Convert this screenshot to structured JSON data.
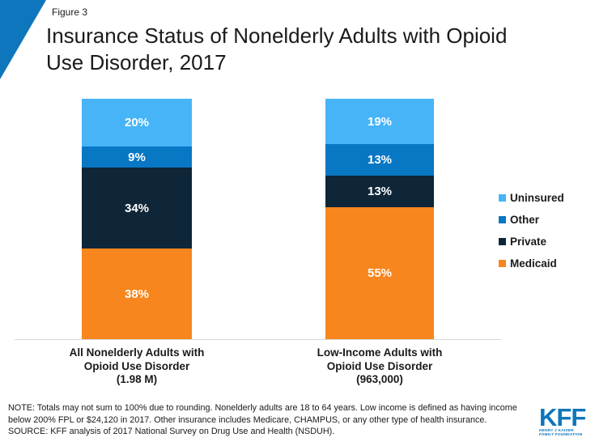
{
  "header": {
    "figure_label": "Figure 3",
    "title_line1": "Insurance Status of Nonelderly Adults with Opioid",
    "title_line2": "Use Disorder, 2017",
    "accent_color": "#0E76BC"
  },
  "chart_data": {
    "type": "bar",
    "subtype": "stacked-vertical",
    "title": "Insurance Status of Nonelderly Adults with Opioid Use Disorder, 2017",
    "figure": "Figure 3",
    "value_format": "percent",
    "ylim": [
      0,
      100
    ],
    "grid": false,
    "legend_position": "right",
    "axis_line_color": "#D9D9D9",
    "categories": [
      [
        "All Nonelderly Adults with",
        "Opioid Use Disorder",
        "(1.98 M)"
      ],
      [
        "Low-Income Adults with",
        "Opioid Use Disorder",
        "(963,000)"
      ]
    ],
    "stack_order_top_to_bottom": [
      "Uninsured",
      "Other",
      "Private",
      "Medicaid"
    ],
    "series": [
      {
        "name": "Uninsured",
        "color": "#47B4F8",
        "values": [
          20,
          19
        ]
      },
      {
        "name": "Other",
        "color": "#0877C4",
        "values": [
          9,
          13
        ]
      },
      {
        "name": "Private",
        "color": "#0E2638",
        "values": [
          34,
          13
        ]
      },
      {
        "name": "Medicaid",
        "color": "#F6861D",
        "values": [
          38,
          55
        ]
      }
    ]
  },
  "footer": {
    "note": "NOTE: Totals may not sum to 100% due to rounding. Nonelderly adults are 18 to 64 years. Low income is defined as having income below 200% FPL or $24,120 in 2017. Other insurance includes Medicare, CHAMPUS, or any other type of health insurance.",
    "source": "SOURCE: KFF analysis of 2017 National Survey on Drug Use and Health (NSDUH)."
  },
  "logo": {
    "text": "KFF",
    "tagline": [
      "HENRY J KAISER",
      "FAMILY FOUNDATION"
    ],
    "color": "#0E76BC"
  }
}
